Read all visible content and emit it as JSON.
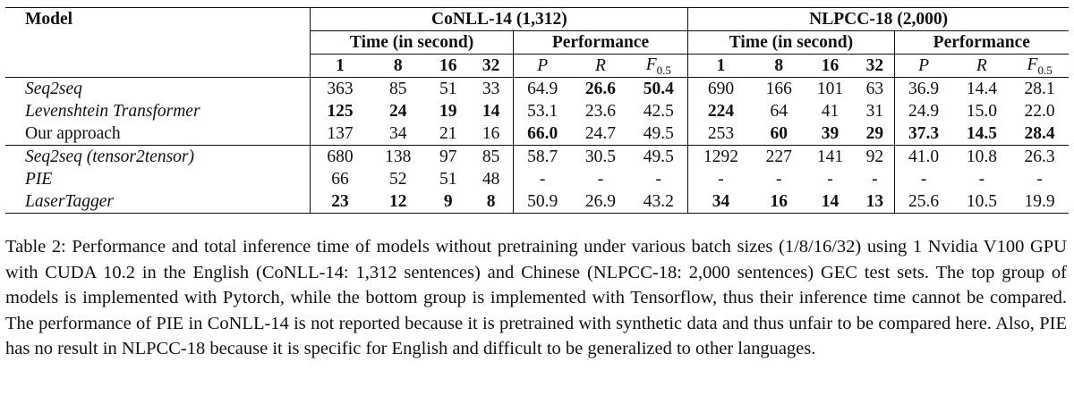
{
  "table": {
    "header": {
      "model_label": "Model",
      "groups": [
        "CoNLL-14 (1,312)",
        "NLPCC-18 (2,000)"
      ],
      "subgroups": [
        "Time (in second)",
        "Performance",
        "Time (in second)",
        "Performance"
      ],
      "batch_sizes": [
        "1",
        "8",
        "16",
        "32"
      ],
      "metrics": [
        {
          "letter": "P",
          "sub": ""
        },
        {
          "letter": "R",
          "sub": ""
        },
        {
          "letter": "F",
          "sub": "0.5"
        }
      ]
    },
    "rows": [
      {
        "model": "Seq2seq",
        "italic": true,
        "cells": [
          "363",
          "85",
          "51",
          "33",
          "64.9",
          "26.6",
          "50.4",
          "690",
          "166",
          "101",
          "63",
          "36.9",
          "14.4",
          "28.1"
        ],
        "bold": [
          false,
          false,
          false,
          false,
          false,
          true,
          true,
          false,
          false,
          false,
          false,
          false,
          false,
          false
        ]
      },
      {
        "model": "Levenshtein Transformer",
        "italic": true,
        "cells": [
          "125",
          "24",
          "19",
          "14",
          "53.1",
          "23.6",
          "42.5",
          "224",
          "64",
          "41",
          "31",
          "24.9",
          "15.0",
          "22.0"
        ],
        "bold": [
          true,
          true,
          true,
          true,
          false,
          false,
          false,
          true,
          false,
          false,
          false,
          false,
          false,
          false
        ]
      },
      {
        "model": "Our approach",
        "italic": false,
        "cells": [
          "137",
          "34",
          "21",
          "16",
          "66.0",
          "24.7",
          "49.5",
          "253",
          "60",
          "39",
          "29",
          "37.3",
          "14.5",
          "28.4"
        ],
        "bold": [
          false,
          false,
          false,
          false,
          true,
          false,
          false,
          false,
          true,
          true,
          true,
          true,
          true,
          true
        ]
      },
      {
        "model": "Seq2seq (tensor2tensor)",
        "italic": true,
        "cells": [
          "680",
          "138",
          "97",
          "85",
          "58.7",
          "30.5",
          "49.5",
          "1292",
          "227",
          "141",
          "92",
          "41.0",
          "10.8",
          "26.3"
        ],
        "bold": [
          false,
          false,
          false,
          false,
          false,
          false,
          false,
          false,
          false,
          false,
          false,
          false,
          false,
          false
        ]
      },
      {
        "model": "PIE",
        "italic": true,
        "cells": [
          "66",
          "52",
          "51",
          "48",
          "-",
          "-",
          "-",
          "-",
          "-",
          "-",
          "-",
          "-",
          "-",
          "-"
        ],
        "bold": [
          false,
          false,
          false,
          false,
          false,
          false,
          false,
          false,
          false,
          false,
          false,
          false,
          false,
          false
        ]
      },
      {
        "model": "LaserTagger",
        "italic": true,
        "cells": [
          "23",
          "12",
          "9",
          "8",
          "50.9",
          "26.9",
          "43.2",
          "34",
          "16",
          "14",
          "13",
          "25.6",
          "10.5",
          "19.9"
        ],
        "bold": [
          true,
          true,
          true,
          true,
          false,
          false,
          false,
          true,
          true,
          true,
          true,
          false,
          false,
          false
        ]
      }
    ]
  },
  "caption": "Table 2: Performance and total inference time of models without pretraining under various batch sizes (1/8/16/32) using 1 Nvidia V100 GPU with CUDA 10.2 in the English (CoNLL-14: 1,312 sentences) and Chinese (NLPCC-18: 2,000 sentences) GEC test sets.  The top group of models is implemented with Pytorch, while the bottom group is implemented with Tensorflow, thus their inference time cannot be compared. The performance of PIE in CoNLL-14 is not reported because it is pretrained with synthetic data and thus unfair to be compared here. Also, PIE has no result in NLPCC-18 because it is specific for English and difficult to be generalized to other languages."
}
